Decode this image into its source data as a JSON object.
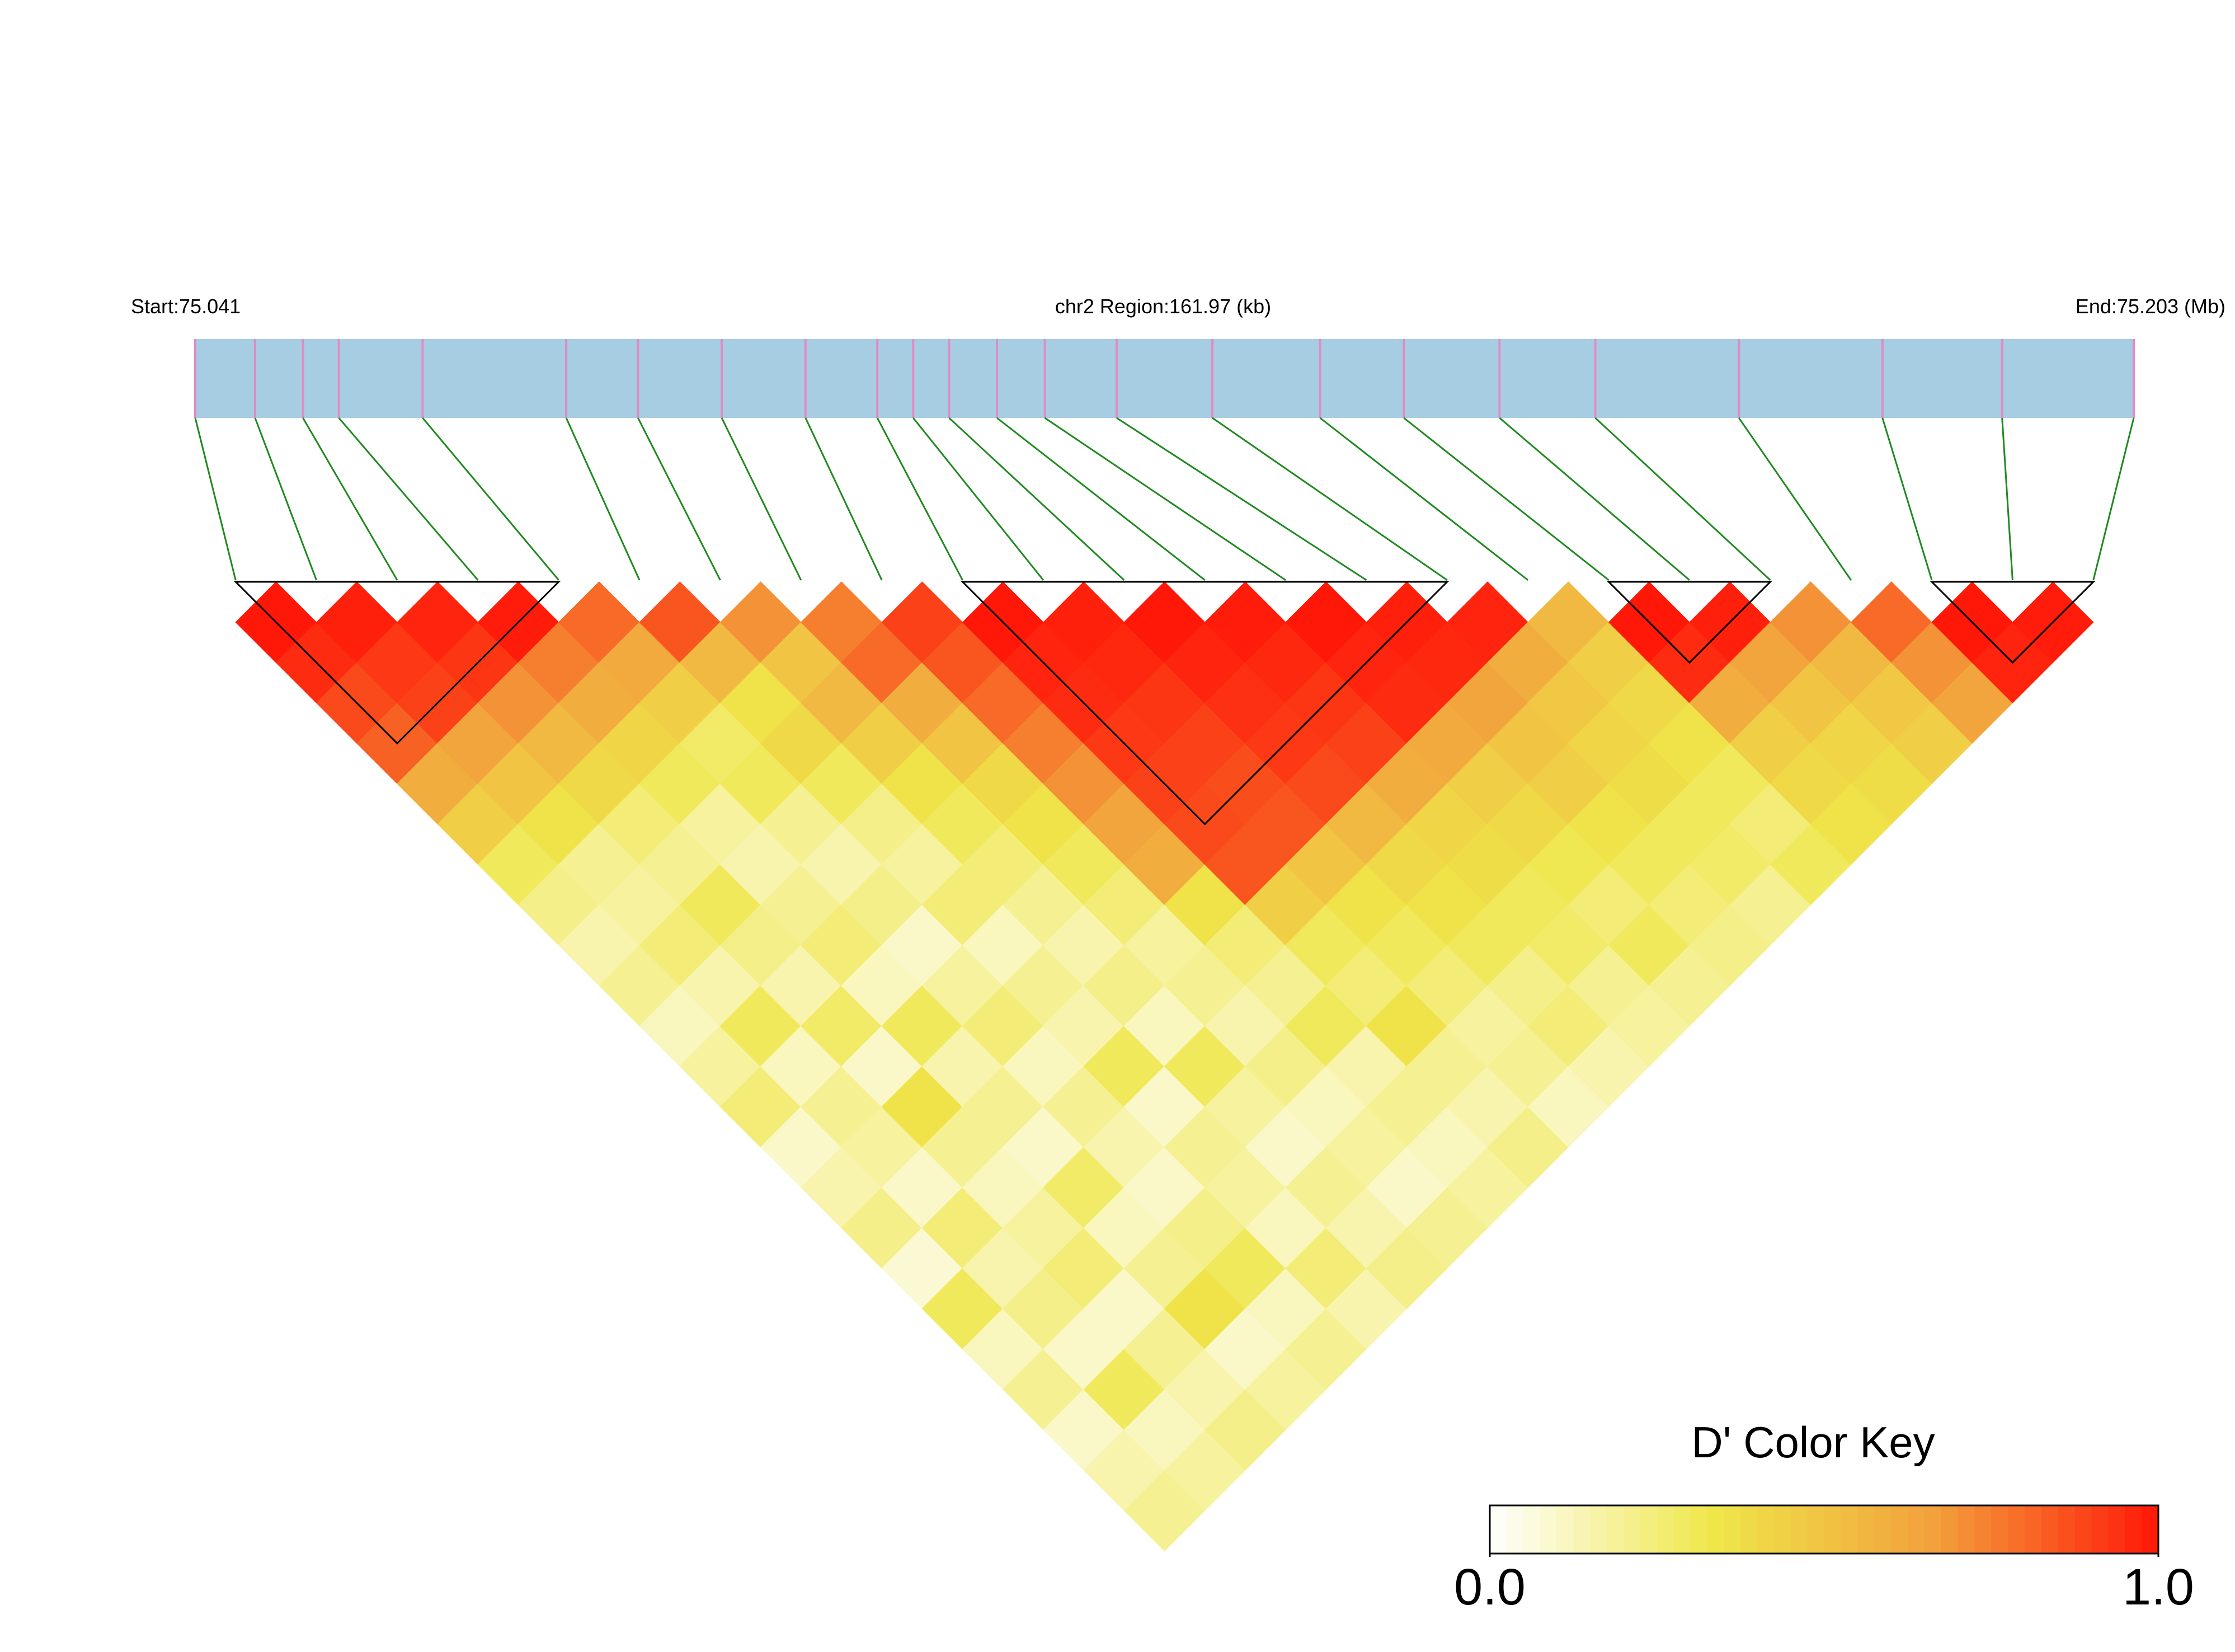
{
  "chart_data": {
    "type": "ld_heatmap",
    "start_label": "Start:75.041",
    "region_label": "chr2 Region:161.97 (kb)",
    "end_label": "End:75.203 (Mb)",
    "snp_positions": [
      75.041,
      75.046,
      75.05,
      75.053,
      75.06,
      75.072,
      75.078,
      75.085,
      75.092,
      75.098,
      75.101,
      75.104,
      75.108,
      75.112,
      75.118,
      75.126,
      75.135,
      75.142,
      75.15,
      75.158,
      75.17,
      75.182,
      75.192,
      75.203
    ],
    "xlim": [
      75.041,
      75.203
    ],
    "dprime": [
      [
        1.0,
        0.95,
        0.88,
        0.82,
        0.6,
        0.45,
        0.3,
        0.22,
        0.15,
        0.2,
        0.12,
        0.18,
        0.25,
        0.1,
        0.15,
        0.22,
        0.08,
        0.3,
        0.12,
        0.2,
        0.1,
        0.15,
        0.2
      ],
      [
        0.98,
        0.92,
        0.9,
        0.65,
        0.5,
        0.35,
        0.2,
        0.18,
        0.25,
        0.15,
        0.3,
        0.12,
        0.2,
        0.18,
        0.1,
        0.25,
        0.15,
        0.22,
        0.1,
        0.3,
        0.12,
        0.18
      ],
      [
        0.97,
        0.93,
        0.7,
        0.55,
        0.4,
        0.25,
        0.2,
        0.3,
        0.22,
        0.15,
        0.28,
        0.1,
        0.35,
        0.2,
        0.12,
        0.18,
        0.25,
        0.1,
        0.2,
        0.15,
        0.22
      ],
      [
        0.99,
        0.75,
        0.6,
        0.42,
        0.3,
        0.18,
        0.15,
        0.2,
        0.25,
        0.12,
        0.3,
        0.15,
        0.2,
        0.1,
        0.28,
        0.12,
        0.2,
        0.35,
        0.1,
        0.18
      ],
      [
        0.8,
        0.62,
        0.45,
        0.28,
        0.3,
        0.2,
        0.15,
        0.22,
        0.1,
        0.18,
        0.25,
        0.12,
        0.2,
        0.15,
        0.1,
        0.22,
        0.3,
        0.12,
        0.2
      ],
      [
        0.85,
        0.55,
        0.35,
        0.4,
        0.3,
        0.22,
        0.18,
        0.25,
        0.12,
        0.2,
        0.15,
        0.3,
        0.1,
        0.2,
        0.18,
        0.12,
        0.25,
        0.15
      ],
      [
        0.7,
        0.5,
        0.55,
        0.45,
        0.35,
        0.3,
        0.25,
        0.2,
        0.15,
        0.22,
        0.12,
        0.3,
        0.18,
        0.1,
        0.2,
        0.15,
        0.22
      ],
      [
        0.75,
        0.8,
        0.6,
        0.5,
        0.4,
        0.35,
        0.3,
        0.25,
        0.18,
        0.2,
        0.15,
        0.22,
        0.12,
        0.18,
        0.1,
        0.2
      ],
      [
        0.9,
        0.85,
        0.8,
        0.75,
        0.7,
        0.65,
        0.6,
        0.35,
        0.25,
        0.2,
        0.3,
        0.15,
        0.2,
        0.12,
        0.18
      ],
      [
        1.0,
        0.97,
        0.95,
        0.92,
        0.9,
        0.88,
        0.85,
        0.45,
        0.3,
        0.25,
        0.35,
        0.2,
        0.15,
        0.22
      ],
      [
        0.98,
        0.96,
        0.93,
        0.9,
        0.87,
        0.85,
        0.5,
        0.35,
        0.3,
        0.25,
        0.18,
        0.2,
        0.12
      ],
      [
        1.0,
        0.97,
        0.94,
        0.92,
        0.88,
        0.55,
        0.4,
        0.35,
        0.3,
        0.22,
        0.25,
        0.15
      ],
      [
        0.99,
        0.96,
        0.93,
        0.9,
        0.6,
        0.42,
        0.38,
        0.3,
        0.28,
        0.2,
        0.18
      ],
      [
        1.0,
        0.97,
        0.95,
        0.62,
        0.45,
        0.4,
        0.32,
        0.25,
        0.3,
        0.2
      ],
      [
        0.98,
        0.96,
        0.65,
        0.5,
        0.45,
        0.35,
        0.3,
        0.25,
        0.22
      ],
      [
        0.97,
        0.6,
        0.48,
        0.42,
        0.38,
        0.3,
        0.28,
        0.2
      ],
      [
        0.55,
        0.45,
        0.4,
        0.35,
        0.3,
        0.25,
        0.3
      ],
      [
        1.0,
        0.95,
        0.6,
        0.45,
        0.4,
        0.35
      ],
      [
        0.98,
        0.65,
        0.5,
        0.42,
        0.38
      ],
      [
        0.7,
        0.55,
        0.48,
        0.45
      ],
      [
        0.8,
        0.7,
        0.65
      ],
      [
        1.0,
        0.97
      ],
      [
        0.99
      ]
    ],
    "blocks": [
      [
        0,
        4
      ],
      [
        9,
        15
      ],
      [
        17,
        19
      ],
      [
        21,
        23
      ]
    ],
    "gene_bar_color": "#a7cde2",
    "snp_stripe_color": "#e08cc4",
    "link_color": "#1f8a1f",
    "colors": [
      "#ffffff",
      "#efe74a",
      "#f2a03c",
      "#ff1808"
    ],
    "key_title": "D' Color Key",
    "key_ticks": [
      {
        "value": 0,
        "label": "0.0"
      },
      {
        "value": 1,
        "label": "1.0"
      }
    ]
  }
}
